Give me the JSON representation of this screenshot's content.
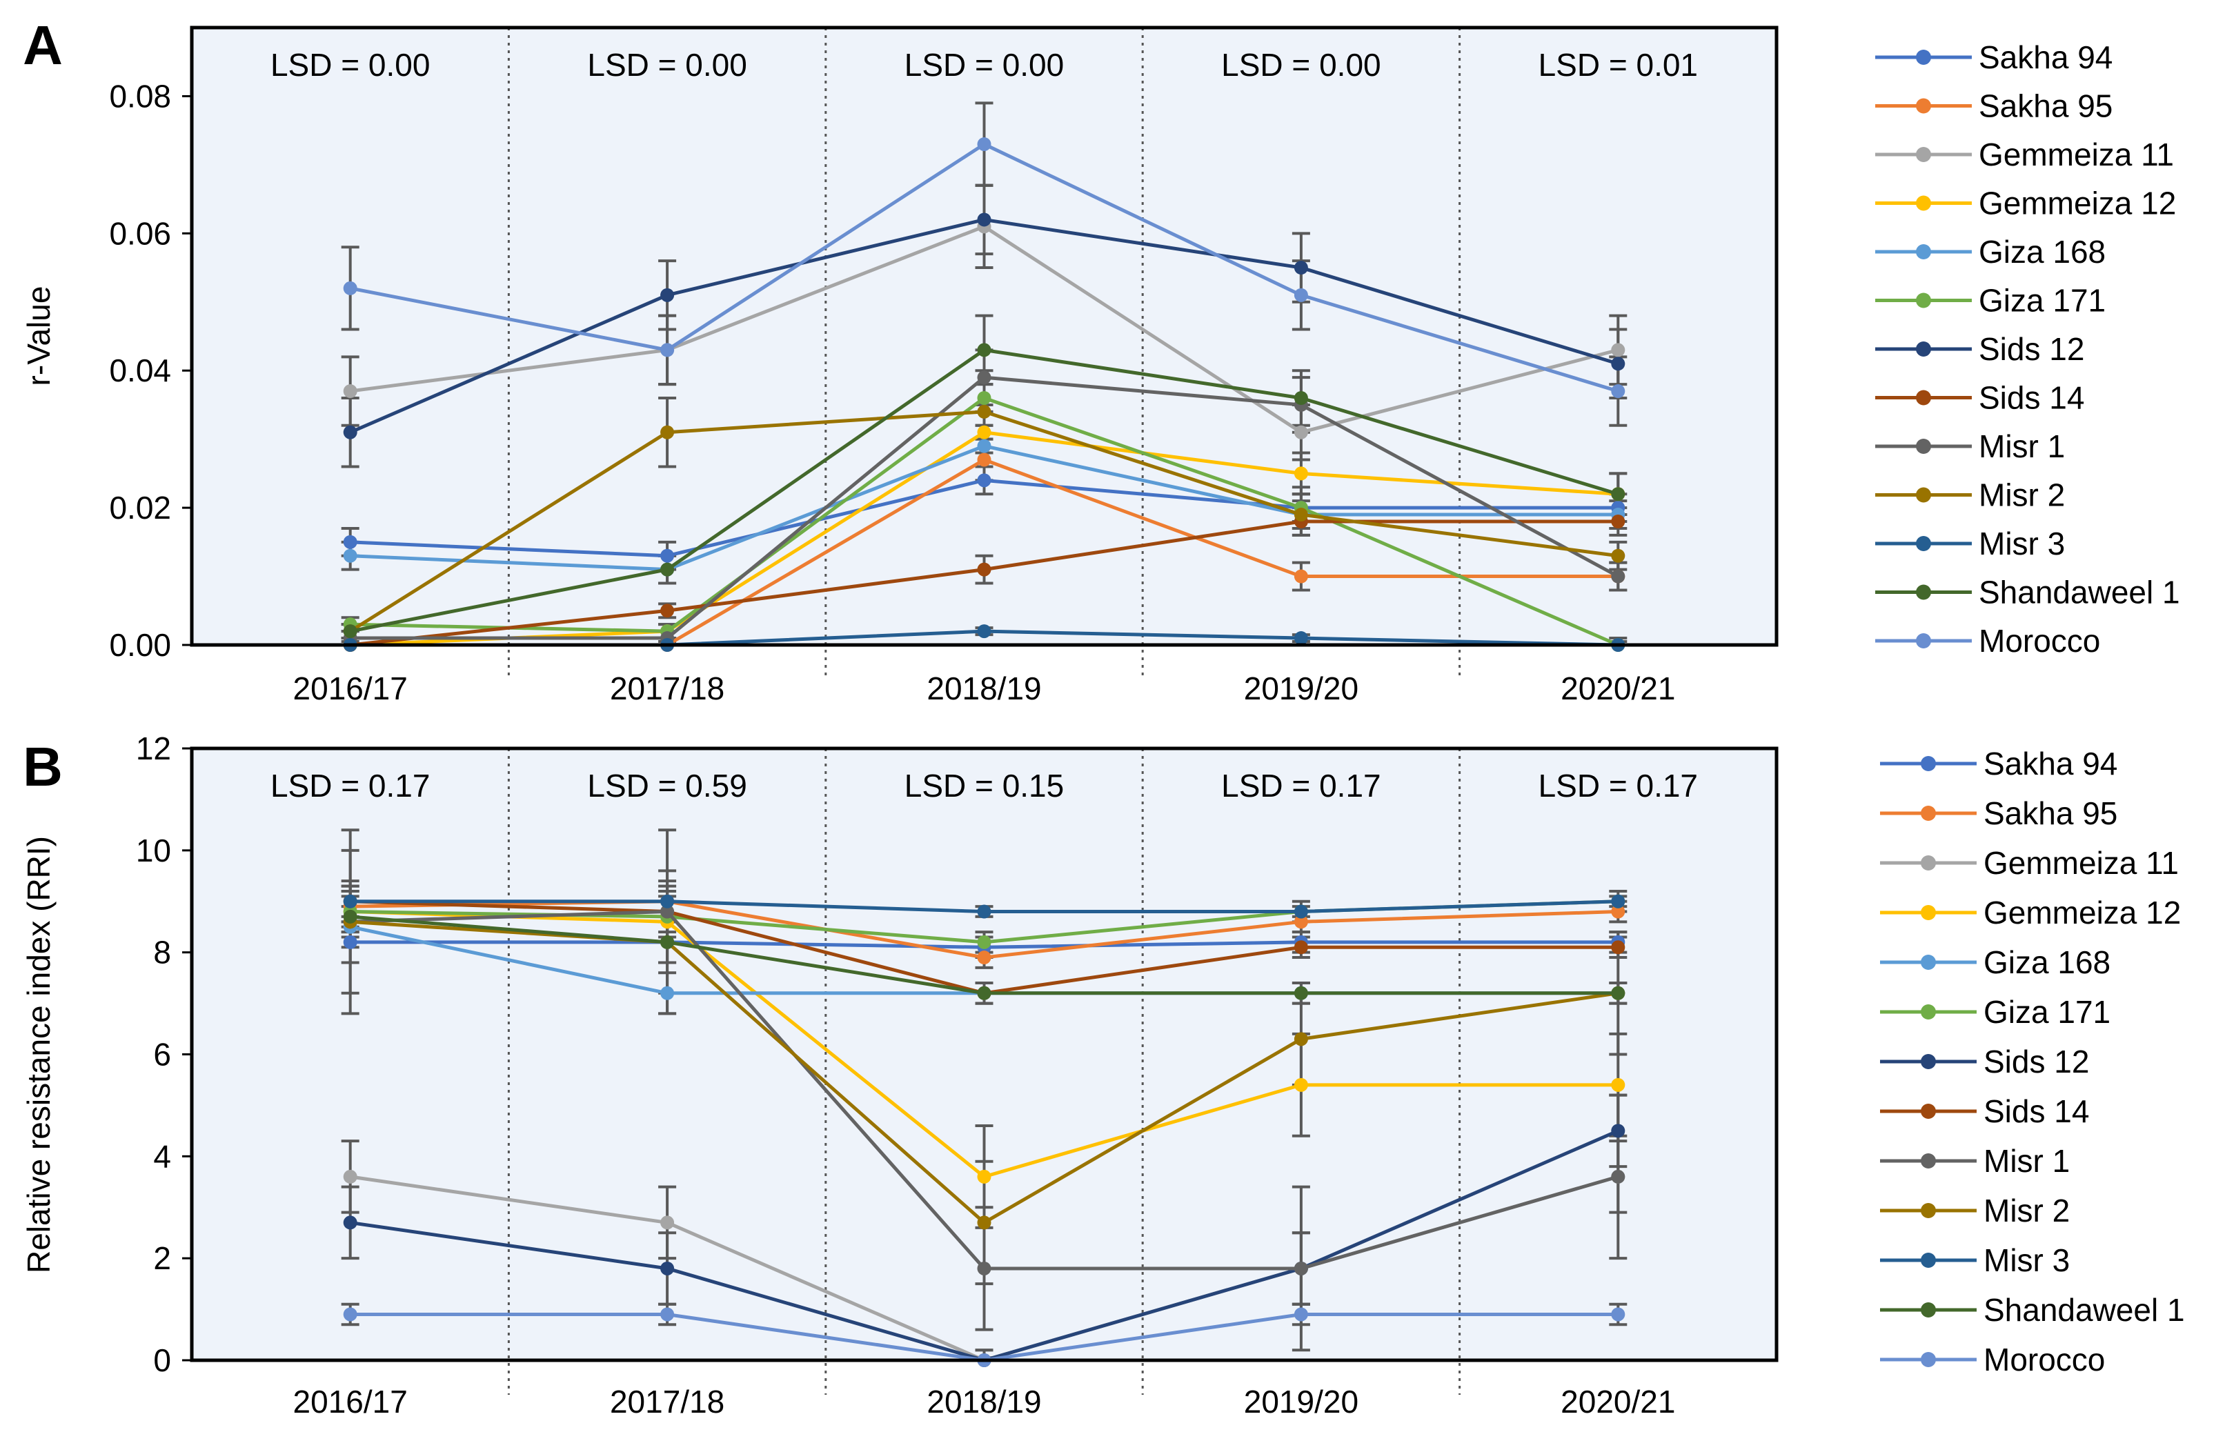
{
  "chart_data": [
    {
      "panel_label": "A",
      "type": "line",
      "title": "",
      "xlabel": "",
      "ylabel": "r-Value",
      "ylim": [
        0,
        0.09
      ],
      "yticks": [
        0,
        0.02,
        0.04,
        0.06,
        0.08
      ],
      "ytick_labels": [
        "0.00",
        "0.02",
        "0.04",
        "0.06",
        "0.08"
      ],
      "categories": [
        "2016/17",
        "2017/18",
        "2018/19",
        "2019/20",
        "2020/21"
      ],
      "lsd_labels": [
        "LSD = 0.00",
        "LSD = 0.00",
        "LSD = 0.00",
        "LSD = 0.00",
        "LSD = 0.01"
      ],
      "legend_position": "right",
      "series": [
        {
          "name": "Sakha 94",
          "color": "#4472C4",
          "values": [
            0.015,
            0.013,
            0.024,
            0.02,
            0.02
          ],
          "errors": [
            0.002,
            0.002,
            0.002,
            0.002,
            0.002
          ]
        },
        {
          "name": "Sakha 95",
          "color": "#ED7D31",
          "values": [
            0.0,
            0.0,
            0.027,
            0.01,
            0.01
          ],
          "errors": [
            0.001,
            0.001,
            0.003,
            0.002,
            0.002
          ]
        },
        {
          "name": "Gemmeiza 11",
          "color": "#A5A5A5",
          "values": [
            0.037,
            0.043,
            0.061,
            0.031,
            0.043
          ],
          "errors": [
            0.005,
            0.005,
            0.006,
            0.004,
            0.005
          ]
        },
        {
          "name": "Gemmeiza 12",
          "color": "#FFC000",
          "values": [
            0.0,
            0.002,
            0.031,
            0.025,
            0.022
          ],
          "errors": [
            0.001,
            0.001,
            0.003,
            0.003,
            0.003
          ]
        },
        {
          "name": "Giza 168",
          "color": "#5B9BD5",
          "values": [
            0.013,
            0.011,
            0.029,
            0.019,
            0.019
          ],
          "errors": [
            0.002,
            0.002,
            0.003,
            0.002,
            0.002
          ]
        },
        {
          "name": "Giza 171",
          "color": "#70AD47",
          "values": [
            0.003,
            0.002,
            0.036,
            0.02,
            0.0
          ],
          "errors": [
            0.001,
            0.001,
            0.004,
            0.003,
            0.001
          ]
        },
        {
          "name": "Sids 12",
          "color": "#264478",
          "values": [
            0.031,
            0.051,
            0.062,
            0.055,
            0.041
          ],
          "errors": [
            0.005,
            0.005,
            0.005,
            0.005,
            0.005
          ]
        },
        {
          "name": "Sids 14",
          "color": "#9E480E",
          "values": [
            0.0,
            0.005,
            0.011,
            0.018,
            0.018
          ],
          "errors": [
            0.001,
            0.001,
            0.002,
            0.002,
            0.002
          ]
        },
        {
          "name": "Misr 1",
          "color": "#636363",
          "values": [
            0.001,
            0.001,
            0.039,
            0.035,
            0.01
          ],
          "errors": [
            0.001,
            0.001,
            0.004,
            0.004,
            0.002
          ]
        },
        {
          "name": "Misr 2",
          "color": "#997300",
          "values": [
            0.002,
            0.031,
            0.034,
            0.019,
            0.013
          ],
          "errors": [
            0.001,
            0.005,
            0.004,
            0.003,
            0.002
          ]
        },
        {
          "name": "Misr 3",
          "color": "#255E91",
          "values": [
            0.0,
            0.0,
            0.002,
            0.001,
            0.0
          ],
          "errors": [
            0.0005,
            0.0005,
            0.0005,
            0.0005,
            0.0005
          ]
        },
        {
          "name": "Shandaweel 1",
          "color": "#43682B",
          "values": [
            0.002,
            0.011,
            0.043,
            0.036,
            0.022
          ],
          "errors": [
            0.001,
            0.002,
            0.005,
            0.004,
            0.003
          ]
        },
        {
          "name": "Morocco",
          "color": "#698ED0",
          "values": [
            0.052,
            0.043,
            0.073,
            0.051,
            0.037
          ],
          "errors": [
            0.006,
            0.005,
            0.006,
            0.005,
            0.005
          ]
        }
      ]
    },
    {
      "panel_label": "B",
      "type": "line",
      "title": "",
      "xlabel": "",
      "ylabel": "Relative resistance index (RRI)",
      "ylim": [
        0,
        12
      ],
      "yticks": [
        0,
        2,
        4,
        6,
        8,
        10,
        12
      ],
      "ytick_labels": [
        "0",
        "2",
        "4",
        "6",
        "8",
        "10",
        "12"
      ],
      "categories": [
        "2016/17",
        "2017/18",
        "2018/19",
        "2019/20",
        "2020/21"
      ],
      "lsd_labels": [
        "LSD = 0.17",
        "LSD = 0.59",
        "LSD = 0.15",
        "LSD = 0.17",
        "LSD = 0.17"
      ],
      "legend_position": "right",
      "series": [
        {
          "name": "Sakha 94",
          "color": "#4472C4",
          "values": [
            8.2,
            8.2,
            8.1,
            8.2,
            8.2
          ],
          "errors": [
            0.4,
            0.4,
            0.2,
            0.2,
            0.2
          ]
        },
        {
          "name": "Sakha 95",
          "color": "#ED7D31",
          "values": [
            8.9,
            9.0,
            7.9,
            8.6,
            8.8
          ],
          "errors": [
            0.4,
            0.4,
            0.2,
            0.2,
            0.2
          ]
        },
        {
          "name": "Gemmeiza 11",
          "color": "#A5A5A5",
          "values": [
            3.6,
            2.7,
            0.0,
            1.8,
            3.6
          ],
          "errors": [
            0.7,
            0.7,
            0.2,
            0.7,
            0.7
          ]
        },
        {
          "name": "Gemmeiza 12",
          "color": "#FFC000",
          "values": [
            8.8,
            8.6,
            3.6,
            5.4,
            5.4
          ],
          "errors": [
            0.4,
            0.4,
            1.0,
            1.0,
            1.0
          ]
        },
        {
          "name": "Giza 168",
          "color": "#5B9BD5",
          "values": [
            8.5,
            7.2,
            7.2,
            7.2,
            7.2
          ],
          "errors": [
            0.4,
            0.4,
            0.2,
            0.2,
            0.2
          ]
        },
        {
          "name": "Giza 171",
          "color": "#70AD47",
          "values": [
            8.8,
            8.7,
            8.2,
            8.8,
            9.0
          ],
          "errors": [
            0.4,
            0.4,
            0.2,
            0.2,
            0.2
          ]
        },
        {
          "name": "Sids 12",
          "color": "#264478",
          "values": [
            2.7,
            1.8,
            0.0,
            1.8,
            4.5
          ],
          "errors": [
            0.7,
            0.7,
            0.2,
            0.7,
            0.7
          ]
        },
        {
          "name": "Sids 14",
          "color": "#9E480E",
          "values": [
            9.0,
            8.8,
            7.2,
            8.1,
            8.1
          ],
          "errors": [
            0.4,
            0.4,
            0.2,
            0.2,
            0.2
          ]
        },
        {
          "name": "Misr 1",
          "color": "#636363",
          "values": [
            8.6,
            8.8,
            1.8,
            1.8,
            3.6
          ],
          "errors": [
            1.8,
            1.6,
            1.2,
            1.6,
            1.6
          ]
        },
        {
          "name": "Misr 2",
          "color": "#997300",
          "values": [
            8.6,
            8.2,
            2.7,
            6.3,
            7.2
          ],
          "errors": [
            1.4,
            1.4,
            1.2,
            0.9,
            1.2
          ]
        },
        {
          "name": "Misr 3",
          "color": "#255E91",
          "values": [
            9.0,
            9.0,
            8.8,
            8.8,
            9.0
          ],
          "errors": [
            0.3,
            0.3,
            0.1,
            0.1,
            0.1
          ]
        },
        {
          "name": "Shandaweel 1",
          "color": "#43682B",
          "values": [
            8.7,
            8.2,
            7.2,
            7.2,
            7.2
          ],
          "errors": [
            0.4,
            0.4,
            0.2,
            0.2,
            0.2
          ]
        },
        {
          "name": "Morocco",
          "color": "#698ED0",
          "values": [
            0.9,
            0.9,
            0.0,
            0.9,
            0.9
          ],
          "errors": [
            0.2,
            0.2,
            0.05,
            0.2,
            0.2
          ]
        }
      ]
    }
  ],
  "style": {
    "plot_background": "#EEF3FA",
    "axis_color": "#000000",
    "error_bar_color": "#595959",
    "divider_color": "#555555"
  }
}
